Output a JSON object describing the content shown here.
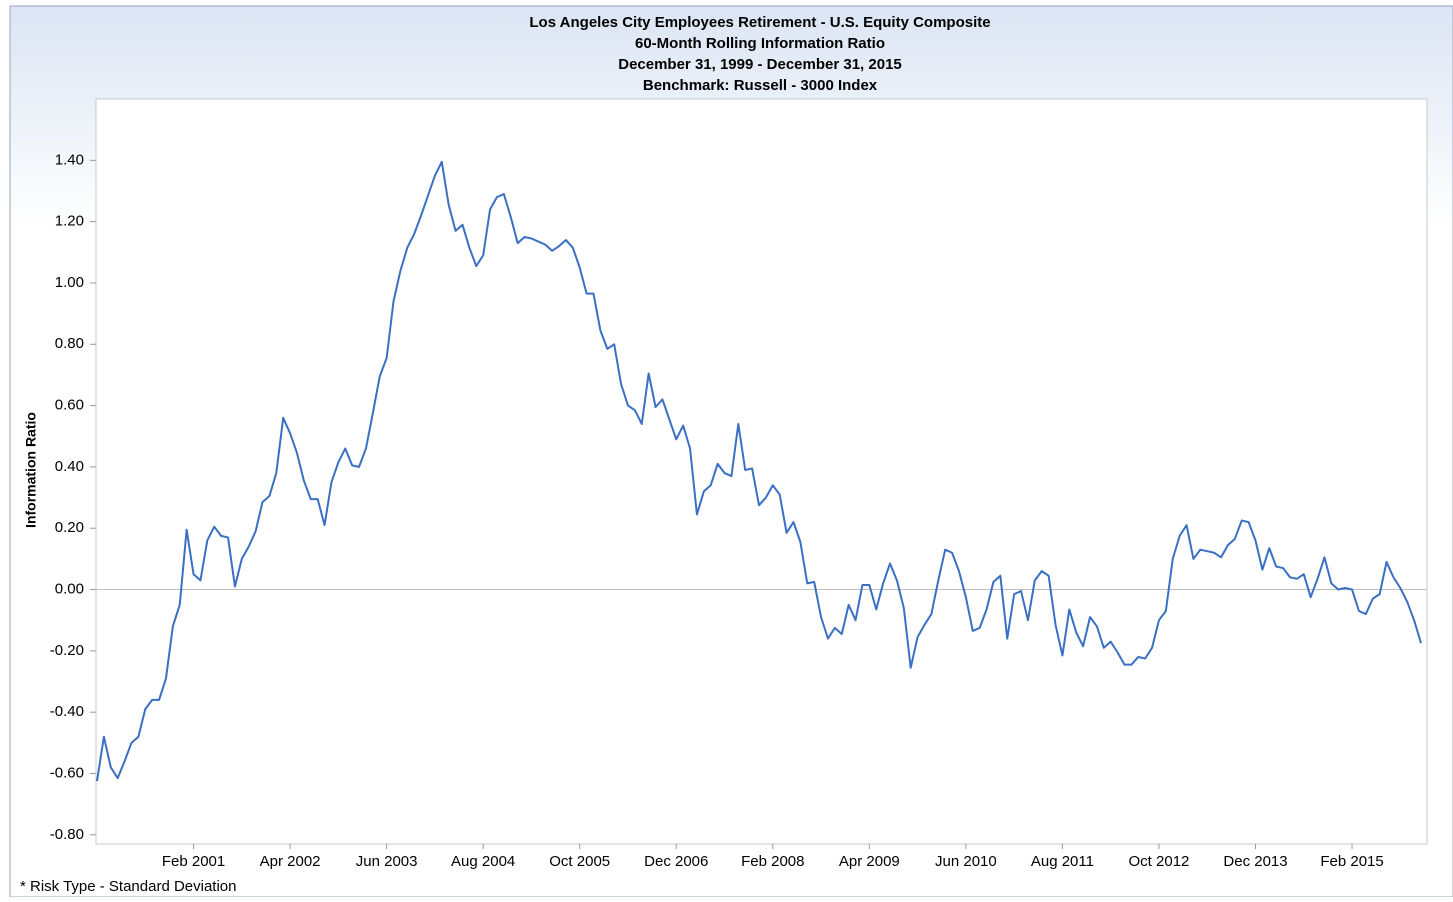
{
  "chart_data": {
    "type": "line",
    "title": "Los Angeles City Employees Retirement - U.S. Equity Composite",
    "subtitle": [
      "60-Month Rolling Information Ratio",
      "December 31, 1999 - December 31, 2015",
      "Benchmark: Russell - 3000 Index"
    ],
    "y_label": "Information Ratio",
    "footnote": "* Risk Type - Standard Deviation",
    "color": "#3a70c4",
    "categories": [
      null,
      null,
      null,
      null,
      null,
      null,
      null,
      null,
      null,
      null,
      null,
      null,
      null,
      null,
      "Feb 2001",
      null,
      null,
      null,
      null,
      null,
      null,
      null,
      null,
      null,
      null,
      null,
      null,
      null,
      "Apr 2002",
      null,
      null,
      null,
      null,
      null,
      null,
      null,
      null,
      null,
      null,
      null,
      null,
      null,
      "Jun 2003",
      null,
      null,
      null,
      null,
      null,
      null,
      null,
      null,
      null,
      null,
      null,
      null,
      null,
      "Aug 2004",
      null,
      null,
      null,
      null,
      null,
      null,
      null,
      null,
      null,
      null,
      null,
      null,
      null,
      "Oct 2005",
      null,
      null,
      null,
      null,
      null,
      null,
      null,
      null,
      null,
      null,
      null,
      null,
      null,
      "Dec 2006",
      null,
      null,
      null,
      null,
      null,
      null,
      null,
      null,
      null,
      null,
      null,
      null,
      null,
      "Feb 2008",
      null,
      null,
      null,
      null,
      null,
      null,
      null,
      null,
      null,
      null,
      null,
      null,
      null,
      "Apr 2009",
      null,
      null,
      null,
      null,
      null,
      null,
      null,
      null,
      null,
      null,
      null,
      null,
      null,
      "Jun 2010",
      null,
      null,
      null,
      null,
      null,
      null,
      null,
      null,
      null,
      null,
      null,
      null,
      null,
      "Aug 2011",
      null,
      null,
      null,
      null,
      null,
      null,
      null,
      null,
      null,
      null,
      null,
      null,
      null,
      "Oct 2012",
      null,
      null,
      null,
      null,
      null,
      null,
      null,
      null,
      null,
      null,
      null,
      null,
      null,
      "Dec 2013",
      null,
      null,
      null,
      null,
      null,
      null,
      null,
      null,
      null,
      null,
      null,
      null,
      null,
      "Feb 2015",
      null,
      null,
      null,
      null,
      null,
      null,
      null,
      null,
      null,
      null
    ],
    "values": [
      -0.625,
      -0.48,
      -0.58,
      -0.615,
      -0.56,
      -0.5,
      -0.48,
      -0.39,
      -0.36,
      -0.36,
      -0.29,
      -0.12,
      -0.05,
      0.195,
      0.05,
      0.03,
      0.16,
      0.205,
      0.175,
      0.17,
      0.01,
      0.1,
      0.14,
      0.19,
      0.285,
      0.305,
      0.38,
      0.56,
      0.51,
      0.445,
      0.355,
      0.295,
      0.295,
      0.21,
      0.35,
      0.415,
      0.46,
      0.405,
      0.4,
      0.46,
      0.575,
      0.695,
      0.755,
      0.94,
      1.04,
      1.115,
      1.16,
      1.22,
      1.285,
      1.35,
      1.395,
      1.255,
      1.17,
      1.19,
      1.115,
      1.055,
      1.09,
      1.24,
      1.28,
      1.29,
      1.215,
      1.13,
      1.15,
      1.145,
      1.135,
      1.125,
      1.105,
      1.12,
      1.14,
      1.115,
      1.05,
      0.965,
      0.965,
      0.845,
      0.785,
      0.8,
      0.67,
      0.6,
      0.585,
      0.54,
      0.705,
      0.595,
      0.62,
      0.555,
      0.49,
      0.535,
      0.46,
      0.245,
      0.32,
      0.34,
      0.41,
      0.38,
      0.37,
      0.54,
      0.39,
      0.395,
      0.275,
      0.3,
      0.34,
      0.31,
      0.185,
      0.22,
      0.155,
      0.02,
      0.025,
      -0.09,
      -0.16,
      -0.125,
      -0.145,
      -0.05,
      -0.1,
      0.015,
      0.015,
      -0.065,
      0.02,
      0.085,
      0.03,
      -0.06,
      -0.255,
      -0.155,
      -0.115,
      -0.08,
      0.03,
      0.13,
      0.12,
      0.06,
      -0.025,
      -0.135,
      -0.125,
      -0.065,
      0.025,
      0.045,
      -0.16,
      -0.015,
      -0.005,
      -0.1,
      0.03,
      0.06,
      0.045,
      -0.115,
      -0.215,
      -0.065,
      -0.14,
      -0.185,
      -0.09,
      -0.12,
      -0.19,
      -0.17,
      -0.205,
      -0.245,
      -0.245,
      -0.22,
      -0.225,
      -0.19,
      -0.1,
      -0.07,
      0.1,
      0.175,
      0.21,
      0.1,
      0.13,
      0.125,
      0.12,
      0.105,
      0.145,
      0.165,
      0.225,
      0.22,
      0.16,
      0.065,
      0.135,
      0.075,
      0.07,
      0.04,
      0.035,
      0.05,
      -0.025,
      0.035,
      0.105,
      0.02,
      0.0,
      0.005,
      0.0,
      -0.07,
      -0.08,
      -0.03,
      -0.015,
      0.09,
      0.04,
      0.005,
      -0.04,
      -0.1,
      -0.175
    ],
    "ylim": [
      -0.83,
      1.6
    ],
    "yticks": [
      {
        "value": -0.8,
        "label": "-0.80"
      },
      {
        "value": -0.6,
        "label": "-0.60"
      },
      {
        "value": -0.4,
        "label": "-0.40"
      },
      {
        "value": -0.2,
        "label": "-0.20"
      },
      {
        "value": 0,
        "label": "0.00"
      },
      {
        "value": 0.2,
        "label": "0.20"
      },
      {
        "value": 0.4,
        "label": "0.40"
      },
      {
        "value": 0.6,
        "label": "0.60"
      },
      {
        "value": 0.8,
        "label": "0.80"
      },
      {
        "value": 1.0,
        "label": "1.00"
      },
      {
        "value": 1.2,
        "label": "1.20"
      },
      {
        "value": 1.4,
        "label": "1.40"
      }
    ],
    "zero_line": true
  }
}
